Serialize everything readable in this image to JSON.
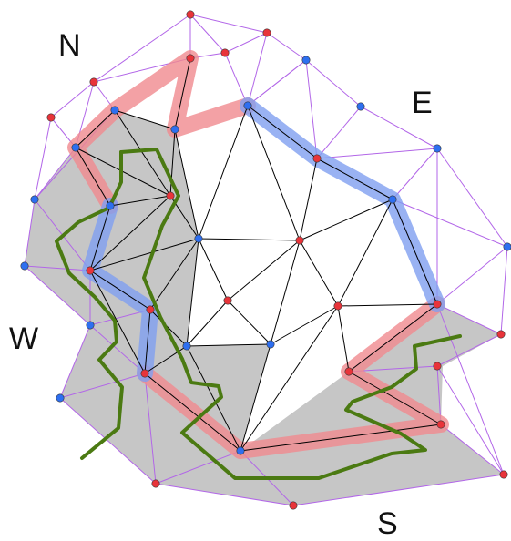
{
  "labels": {
    "north": "N",
    "east": "E",
    "west": "W",
    "south": "S"
  },
  "colors": {
    "red_node": "#e8343a",
    "blue_node": "#2e6ff0",
    "node_stroke": "#5a1a1a",
    "inner_edge": "#000000",
    "outer_edge": "#b266e8",
    "shaded_region": "#c6c6c6",
    "red_path": "#f08a8f",
    "blue_path": "#7f9ff0",
    "green_path": "#4b7a12"
  },
  "nodes": [
    {
      "id": "n1",
      "color": "red"
    },
    {
      "id": "n2",
      "color": "red"
    },
    {
      "id": "n3",
      "color": "red"
    },
    {
      "id": "n4",
      "color": "red"
    },
    {
      "id": "n5",
      "color": "blue"
    },
    {
      "id": "n6",
      "color": "red"
    },
    {
      "id": "n7",
      "color": "red"
    },
    {
      "id": "n8",
      "color": "blue"
    },
    {
      "id": "n9",
      "color": "blue"
    },
    {
      "id": "n10",
      "color": "red"
    },
    {
      "id": "n11",
      "color": "red"
    },
    {
      "id": "n12",
      "color": "blue"
    },
    {
      "id": "n13",
      "color": "blue"
    },
    {
      "id": "n14",
      "color": "blue"
    },
    {
      "id": "n15",
      "color": "red"
    },
    {
      "id": "n16",
      "color": "blue"
    },
    {
      "id": "n17",
      "color": "blue"
    },
    {
      "id": "n18",
      "color": "blue"
    },
    {
      "id": "n19",
      "color": "blue"
    },
    {
      "id": "n20",
      "color": "red"
    },
    {
      "id": "n21",
      "color": "red"
    },
    {
      "id": "n22",
      "color": "red"
    },
    {
      "id": "n23",
      "color": "blue"
    },
    {
      "id": "n24",
      "color": "blue"
    },
    {
      "id": "n25",
      "color": "blue"
    },
    {
      "id": "n26",
      "color": "red"
    },
    {
      "id": "n27",
      "color": "red"
    },
    {
      "id": "n28",
      "color": "red"
    },
    {
      "id": "n29",
      "color": "red"
    },
    {
      "id": "n30",
      "color": "red"
    },
    {
      "id": "n31",
      "color": "blue"
    },
    {
      "id": "n32",
      "color": "red"
    },
    {
      "id": "n33",
      "color": "red"
    },
    {
      "id": "n34",
      "color": "blue"
    },
    {
      "id": "n35",
      "color": "red"
    },
    {
      "id": "n36",
      "color": "red"
    },
    {
      "id": "n37",
      "color": "red"
    },
    {
      "id": "n38",
      "color": "blue"
    },
    {
      "id": "n39",
      "color": "blue"
    }
  ],
  "inner_edges": [
    [
      "n6",
      "n9"
    ],
    [
      "n9",
      "n11"
    ],
    [
      "n11",
      "n13"
    ],
    [
      "n13",
      "n20"
    ],
    [
      "n20",
      "n26"
    ],
    [
      "n26",
      "n33"
    ],
    [
      "n33",
      "n37"
    ],
    [
      "n37",
      "n36"
    ],
    [
      "n36",
      "n29"
    ],
    [
      "n29",
      "n25"
    ],
    [
      "n25",
      "n24"
    ],
    [
      "n24",
      "n17"
    ],
    [
      "n17",
      "n10"
    ],
    [
      "n10",
      "n8"
    ],
    [
      "n8",
      "n7"
    ],
    [
      "n7",
      "n6"
    ],
    [
      "n6",
      "n4"
    ],
    [
      "n4",
      "n7"
    ],
    [
      "n7",
      "n3"
    ],
    [
      "n3",
      "n8"
    ],
    [
      "n4",
      "n3"
    ],
    [
      "n9",
      "n10"
    ],
    [
      "n10",
      "n16"
    ],
    [
      "n10",
      "n18"
    ],
    [
      "n10",
      "n21"
    ],
    [
      "n16",
      "n18"
    ],
    [
      "n18",
      "n19"
    ],
    [
      "n19",
      "n17"
    ],
    [
      "n19",
      "n21"
    ],
    [
      "n16",
      "n14"
    ],
    [
      "n17",
      "n14"
    ],
    [
      "n9",
      "n18"
    ],
    [
      "n9",
      "n12"
    ],
    [
      "n12",
      "n14"
    ],
    [
      "n14",
      "n23"
    ],
    [
      "n14",
      "n20"
    ],
    [
      "n16",
      "n12"
    ],
    [
      "n16",
      "n15"
    ],
    [
      "n16",
      "n20"
    ],
    [
      "n12",
      "n15"
    ],
    [
      "n15",
      "n20"
    ],
    [
      "n15",
      "n22"
    ],
    [
      "n22",
      "n19"
    ],
    [
      "n22",
      "n21"
    ],
    [
      "n21",
      "n28"
    ],
    [
      "n21",
      "n27"
    ],
    [
      "n27",
      "n25"
    ],
    [
      "n27",
      "n28"
    ],
    [
      "n28",
      "n30"
    ],
    [
      "n28",
      "n33"
    ],
    [
      "n33",
      "n30"
    ],
    [
      "n22",
      "n31"
    ],
    [
      "n31",
      "n30"
    ],
    [
      "n31",
      "n23"
    ],
    [
      "n23",
      "n30"
    ],
    [
      "n23",
      "n33"
    ],
    [
      "n23",
      "n35"
    ],
    [
      "n35",
      "n30"
    ],
    [
      "n35",
      "n34"
    ],
    [
      "n20",
      "n34"
    ],
    [
      "n26",
      "n34"
    ],
    [
      "n34",
      "n31"
    ],
    [
      "n22",
      "n30"
    ],
    [
      "n29",
      "n37"
    ]
  ],
  "outer_edges": [
    [
      "n1",
      "n2"
    ],
    [
      "n2",
      "n3"
    ],
    [
      "n3",
      "n5"
    ],
    [
      "n5",
      "n6"
    ],
    [
      "n6",
      "n1"
    ],
    [
      "n1",
      "n4"
    ],
    [
      "n2",
      "n4"
    ],
    [
      "n5",
      "n11"
    ],
    [
      "n11",
      "n13"
    ],
    [
      "n5",
      "n13"
    ],
    [
      "n5",
      "n12"
    ],
    [
      "n12",
      "n24"
    ],
    [
      "n24",
      "n38"
    ],
    [
      "n38",
      "n25"
    ],
    [
      "n25",
      "n39"
    ],
    [
      "n39",
      "n29"
    ],
    [
      "n29",
      "n39"
    ],
    [
      "n39",
      "n36"
    ],
    [
      "n36",
      "n37"
    ],
    [
      "n37",
      "n32"
    ],
    [
      "n32",
      "n26"
    ],
    [
      "n26",
      "n37"
    ],
    [
      "n32",
      "n36"
    ],
    [
      "n2",
      "n7"
    ],
    [
      "n3",
      "n8"
    ],
    [
      "n8",
      "n12"
    ],
    [
      "n12",
      "n17"
    ],
    [
      "n17",
      "n38"
    ],
    [
      "n6",
      "n11"
    ],
    [
      "n13",
      "n20"
    ],
    [
      "n20",
      "n32"
    ],
    [
      "n33",
      "n36"
    ],
    [
      "n29",
      "n37"
    ]
  ]
}
